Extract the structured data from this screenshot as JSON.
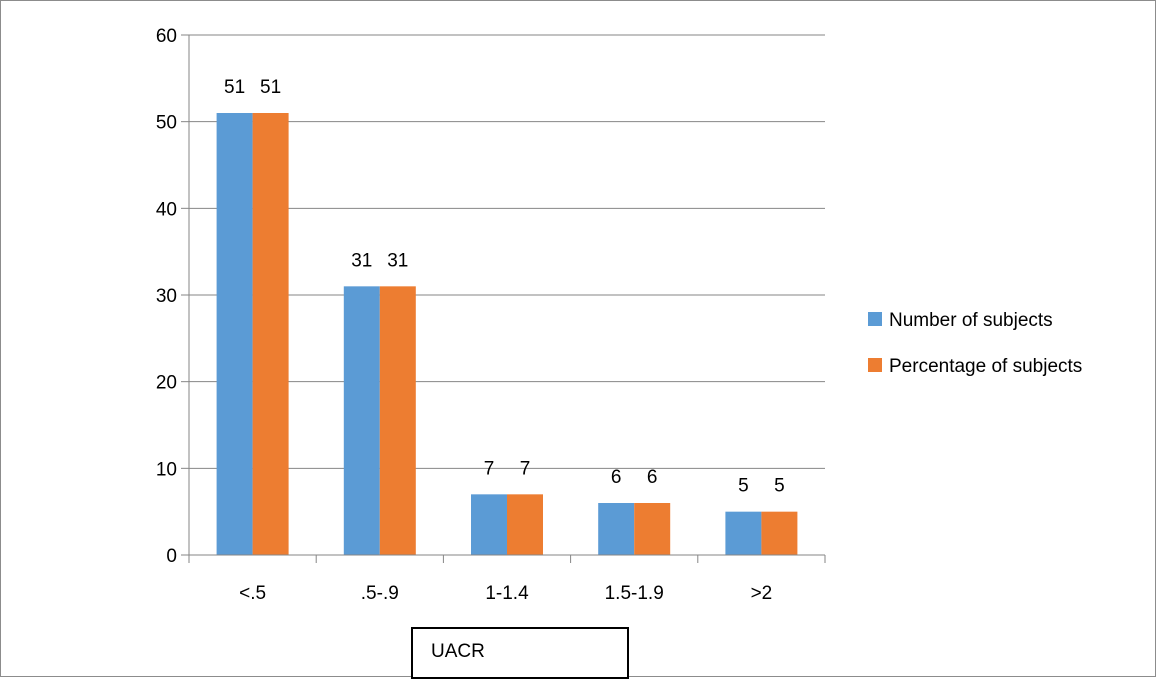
{
  "chart_data": {
    "type": "bar",
    "categories": [
      "<.5",
      ".5-.9",
      "1-1.4",
      "1.5-1.9",
      ">2"
    ],
    "series": [
      {
        "name": "Number of subjects",
        "values": [
          51,
          31,
          7,
          6,
          5
        ],
        "color": "#5b9bd5"
      },
      {
        "name": "Percentage of subjects",
        "values": [
          51,
          31,
          7,
          6,
          5
        ],
        "color": "#ed7d31"
      }
    ],
    "xlabel": "UACR",
    "ylabel": "",
    "title": "",
    "ylim": [
      0,
      60
    ],
    "yticks": [
      0,
      10,
      20,
      30,
      40,
      50,
      60
    ],
    "grid": true,
    "legend_position": "right",
    "data_labels": true
  }
}
